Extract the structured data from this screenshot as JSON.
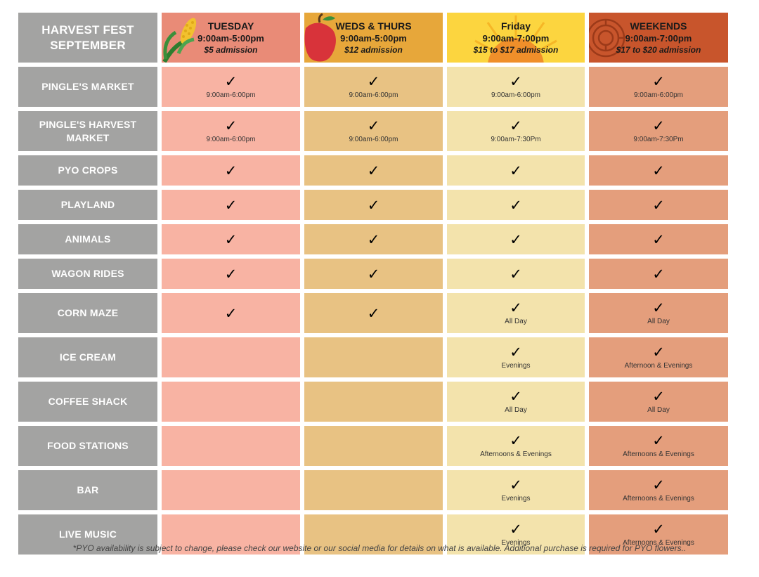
{
  "title": "HARVEST FEST SEPTEMBER",
  "columns": [
    {
      "day": "TUESDAY",
      "hours": "9:00am-5:00pm",
      "admission": "$5 admission"
    },
    {
      "day": "WEDS & THURS",
      "hours": "9:00am-5:00pm",
      "admission": "$12 admission"
    },
    {
      "day": "Friday",
      "hours": "9:00am-7:00pm",
      "admission": "$15 to $17 admission"
    },
    {
      "day": "WEEKENDS",
      "hours": "9:00am-7:00pm",
      "admission": "$17 to $20 admission"
    }
  ],
  "check": "✓",
  "rows": [
    {
      "label": "PINGLE'S MARKET",
      "cells": [
        {
          "check": true,
          "note": "9:00am-6:00pm"
        },
        {
          "check": true,
          "note": "9:00am-6:00pm"
        },
        {
          "check": true,
          "note": "9:00am-6:00pm"
        },
        {
          "check": true,
          "note": "9:00am-6:00pm"
        }
      ]
    },
    {
      "label": "PINGLE'S HARVEST MARKET",
      "cells": [
        {
          "check": true,
          "note": "9:00am-6:00pm"
        },
        {
          "check": true,
          "note": "9:00am-6:00pm"
        },
        {
          "check": true,
          "note": "9:00am-7:30Pm"
        },
        {
          "check": true,
          "note": "9:00am-7:30Pm"
        }
      ]
    },
    {
      "label": "PYO CROPS",
      "cells": [
        {
          "check": true,
          "note": ""
        },
        {
          "check": true,
          "note": ""
        },
        {
          "check": true,
          "note": ""
        },
        {
          "check": true,
          "note": ""
        }
      ]
    },
    {
      "label": "PLAYLAND",
      "cells": [
        {
          "check": true,
          "note": ""
        },
        {
          "check": true,
          "note": ""
        },
        {
          "check": true,
          "note": ""
        },
        {
          "check": true,
          "note": ""
        }
      ]
    },
    {
      "label": "ANIMALS",
      "cells": [
        {
          "check": true,
          "note": ""
        },
        {
          "check": true,
          "note": ""
        },
        {
          "check": true,
          "note": ""
        },
        {
          "check": true,
          "note": ""
        }
      ]
    },
    {
      "label": "WAGON RIDES",
      "cells": [
        {
          "check": true,
          "note": ""
        },
        {
          "check": true,
          "note": ""
        },
        {
          "check": true,
          "note": ""
        },
        {
          "check": true,
          "note": ""
        }
      ]
    },
    {
      "label": "CORN MAZE",
      "cells": [
        {
          "check": true,
          "note": ""
        },
        {
          "check": true,
          "note": ""
        },
        {
          "check": true,
          "note": "All Day"
        },
        {
          "check": true,
          "note": "All Day"
        }
      ]
    },
    {
      "label": "ICE CREAM",
      "cells": [
        {
          "check": false,
          "note": ""
        },
        {
          "check": false,
          "note": ""
        },
        {
          "check": true,
          "note": "Evenings"
        },
        {
          "check": true,
          "note": "Afternoon & Evenings"
        }
      ]
    },
    {
      "label": "COFFEE SHACK",
      "cells": [
        {
          "check": false,
          "note": ""
        },
        {
          "check": false,
          "note": ""
        },
        {
          "check": true,
          "note": "All Day"
        },
        {
          "check": true,
          "note": "All Day"
        }
      ]
    },
    {
      "label": "FOOD STATIONS",
      "cells": [
        {
          "check": false,
          "note": ""
        },
        {
          "check": false,
          "note": ""
        },
        {
          "check": true,
          "note": "Afternoons & Evenings"
        },
        {
          "check": true,
          "note": "Afternoons & Evenings"
        }
      ]
    },
    {
      "label": "BAR",
      "cells": [
        {
          "check": false,
          "note": ""
        },
        {
          "check": false,
          "note": ""
        },
        {
          "check": true,
          "note": "Evenings"
        },
        {
          "check": true,
          "note": "Afternoons & Evenings"
        }
      ]
    },
    {
      "label": "LIVE MUSIC",
      "cells": [
        {
          "check": false,
          "note": ""
        },
        {
          "check": false,
          "note": ""
        },
        {
          "check": true,
          "note": "Evenings"
        },
        {
          "check": true,
          "note": "Afternoons & Evenings"
        }
      ]
    }
  ],
  "footnote": "*PYO availability is subject to change, please check our website or our social media for details on what is available. Additional purchase is required for PYO flowers..",
  "colors": {
    "label_bg": "#a3a3a2",
    "tuesday": "#f8b3a3",
    "weds_thurs": "#e8c283",
    "friday": "#f3e3ac",
    "weekends": "#e49e7c",
    "tuesday_header": "#e98b77",
    "weds_thurs_header": "#e7a73a",
    "friday_header": "#fcd53f",
    "weekends_header": "#c8552c"
  }
}
